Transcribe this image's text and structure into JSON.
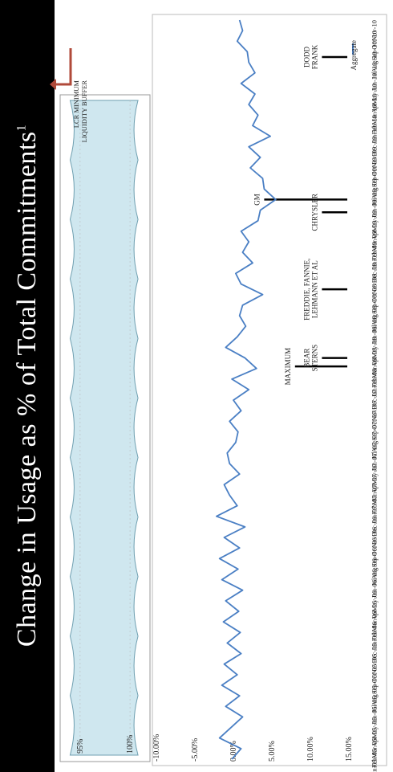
{
  "title": "Change in Usage as % of Total Commitments",
  "title_footnote": "1",
  "colors": {
    "band": "#000000",
    "line": "#4a7fc4",
    "liquidity_fill": "#cfe7ef",
    "liquidity_stroke": "#6f9fb0",
    "arrow": "#b04a3a",
    "event_line": "#000000"
  },
  "chart_data": [
    {
      "type": "area",
      "y_ticks": [
        "100%",
        "95%"
      ],
      "ylim": [
        93,
        102
      ],
      "annotation": [
        "LCR MINIMUM",
        "LIQUIDITY BUFFER"
      ],
      "orientation": "rotated-90-clockwise"
    },
    {
      "type": "line",
      "orientation": "rotated-90-clockwise",
      "ylim": [
        -10,
        15
      ],
      "y_ticks": [
        "-10.00%",
        "-5.00%",
        "0.00%",
        "5.00%",
        "10.00%",
        "15.00%"
      ],
      "y_tick_values": [
        -10,
        -5,
        0,
        5,
        10,
        15
      ],
      "categories": [
        "Jan-05",
        "Feb-05",
        "Mar-05",
        "Apr-05",
        "May-05",
        "Jun-05",
        "Jul-05",
        "Aug-05",
        "Sep-05",
        "Oct-05",
        "Nov-05",
        "Dec-05",
        "Jan-06",
        "Feb-06",
        "Mar-06",
        "Apr-06",
        "May-06",
        "Jun-06",
        "Jul-06",
        "Aug-06",
        "Sep-06",
        "Oct-06",
        "Nov-06",
        "Dec-06",
        "Jan-07",
        "Feb-07",
        "Mar-07",
        "Apr-07",
        "May-07",
        "Jun-07",
        "Jul-07",
        "Aug-07",
        "Sep-07",
        "Oct-07",
        "Nov-07",
        "Dec-07",
        "Jan-08",
        "Feb-08",
        "Mar-08",
        "Apr-08",
        "May-08",
        "Jun-08",
        "Jul-08",
        "Aug-08",
        "Sep-08",
        "Oct-08",
        "Nov-08",
        "Dec-08",
        "Jan-09",
        "Feb-09",
        "Mar-09",
        "Apr-09",
        "May-09",
        "Jun-09",
        "Jul-09",
        "Aug-09",
        "Sep-09",
        "Oct-09",
        "Nov-09",
        "Dec-09",
        "Jan-10",
        "Feb-10",
        "Mar-10",
        "Apr-10",
        "May-10",
        "Jun-10",
        "Jul-10",
        "Aug-10",
        "Sep-10",
        "Oct-10",
        "Nov-10"
      ],
      "series": [
        {
          "name": "Aggregate",
          "values": [
            -0.2,
            1.0,
            -1.8,
            -0.3,
            1.2,
            -1.0,
            0.8,
            -1.5,
            0.5,
            -1.2,
            1.0,
            -0.8,
            0.9,
            -1.3,
            0.7,
            -1.0,
            1.2,
            -1.5,
            0.6,
            -1.8,
            0.8,
            -1.2,
            1.5,
            -2.2,
            0.5,
            -0.5,
            -1.2,
            0.8,
            -0.5,
            -0.8,
            0.3,
            0.6,
            -0.5,
            1.0,
            0.0,
            2.0,
            -0.2,
            3.0,
            1.5,
            -1.0,
            0.5,
            1.6,
            0.8,
            1.2,
            3.8,
            1.0,
            0.3,
            2.5,
            1.2,
            2.0,
            1.0,
            3.2,
            3.5,
            5.5,
            4.0,
            3.8,
            2.2,
            3.5,
            2.0,
            4.8,
            2.5,
            3.2,
            2.0,
            2.8,
            1.0,
            2.8,
            2.0,
            1.8,
            0.5,
            1.2,
            0.8
          ]
        }
      ],
      "events": [
        {
          "label": [
            "MAXIMUM"
          ],
          "index": 37.2
        },
        {
          "label": [
            "BEAR",
            "STERNS"
          ],
          "index": 38.0
        },
        {
          "label": [
            "FREDDIE, FANNIE,",
            "LEHMANN ET AL"
          ],
          "index": 44.5
        },
        {
          "label": [
            "CHRYSLER"
          ],
          "index": 51.8
        },
        {
          "label": [
            "GM"
          ],
          "index": 53.0
        },
        {
          "label": [
            "DODD",
            "FRANK"
          ],
          "index": 66.5
        }
      ],
      "legend": "Aggregate",
      "legend_position": "top-right",
      "grid": false
    }
  ]
}
